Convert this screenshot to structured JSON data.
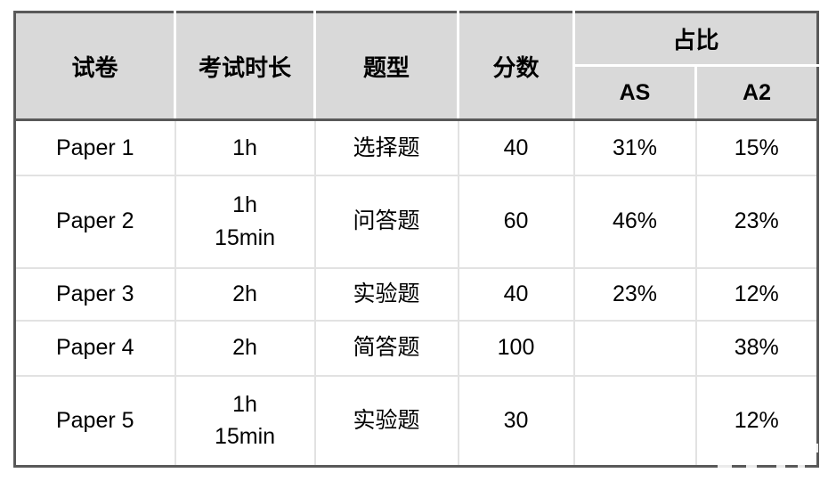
{
  "table": {
    "header": {
      "paper": "试卷",
      "duration": "考试时长",
      "type": "题型",
      "score": "分数",
      "proportion_group": "占比",
      "as": "AS",
      "a2": "A2"
    },
    "rows": [
      {
        "paper": "Paper 1",
        "duration": "1h",
        "type": "选择题",
        "score": "40",
        "as": "31%",
        "a2": "15%"
      },
      {
        "paper": "Paper 2",
        "duration": "1h\n15min",
        "type": "问答题",
        "score": "60",
        "as": "46%",
        "a2": "23%"
      },
      {
        "paper": "Paper 3",
        "duration": "2h",
        "type": "实验题",
        "score": "40",
        "as": "23%",
        "a2": "12%"
      },
      {
        "paper": "Paper 4",
        "duration": "2h",
        "type": "简答题",
        "score": "100",
        "as": "",
        "a2": "38%"
      },
      {
        "paper": "Paper 5",
        "duration": "1h\n15min",
        "type": "实验题",
        "score": "30",
        "as": "",
        "a2": "12%"
      }
    ]
  },
  "colors": {
    "header_bg": "#d9d9d9",
    "outer_border": "#595959",
    "grid_line": "#e2e2e2",
    "text": "#000000"
  }
}
